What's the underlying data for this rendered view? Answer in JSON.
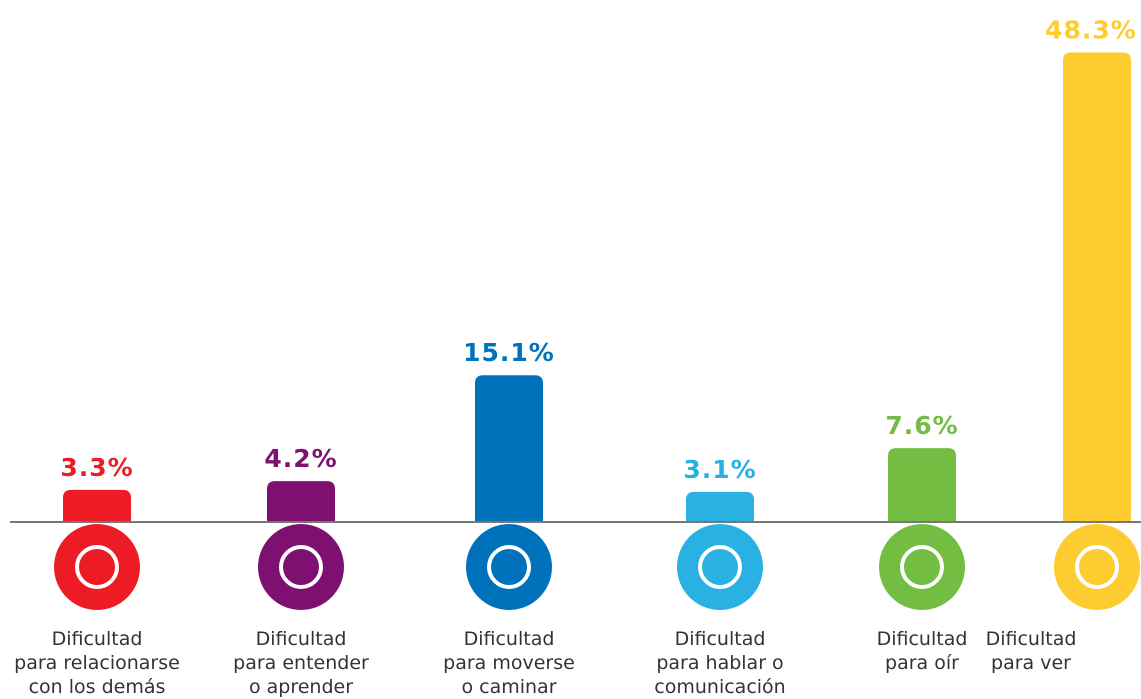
{
  "chart_data": {
    "type": "bar",
    "categories": [
      "Dificultad\npara relacionarse\ncon los demás",
      "Dificultad\npara entender\no aprender",
      "Dificultad\npara moverse\no caminar",
      "Dificultad\npara hablar o\ncomunicación",
      "Dificultad\npara oír",
      "Dificultad\npara ver"
    ],
    "values": [
      3.3,
      4.2,
      15.1,
      3.1,
      7.6,
      48.3
    ],
    "value_labels": [
      "3.3%",
      "4.2%",
      "15.1%",
      "3.1%",
      "7.6%",
      "48.3%"
    ],
    "colors": [
      "#ed1c24",
      "#7d1070",
      "#0072bc",
      "#29b1e4",
      "#74bd43",
      "#fccc30"
    ],
    "ylim": [
      0,
      50
    ]
  }
}
